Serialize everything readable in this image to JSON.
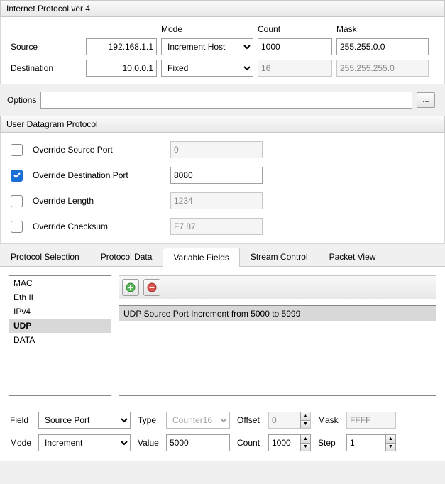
{
  "ipv4": {
    "title": "Internet Protocol ver 4",
    "headers": {
      "mode": "Mode",
      "count": "Count",
      "mask": "Mask"
    },
    "source": {
      "label": "Source",
      "ip": "192.168.1.1",
      "mode": "Increment Host",
      "count": "1000",
      "mask": "255.255.0.0"
    },
    "destination": {
      "label": "Destination",
      "ip": "10.0.0.1",
      "mode": "Fixed",
      "count": "16",
      "mask": "255.255.255.0"
    },
    "options_label": "Options",
    "options_value": ""
  },
  "udp": {
    "title": "User Datagram Protocol",
    "rows": [
      {
        "label": "Override Source Port",
        "checked": false,
        "value": "0"
      },
      {
        "label": "Override Destination Port",
        "checked": true,
        "value": "8080"
      },
      {
        "label": "Override Length",
        "checked": false,
        "value": "1234"
      },
      {
        "label": "Override Checksum",
        "checked": false,
        "value": "F7 87"
      }
    ]
  },
  "tabs": {
    "items": [
      "Protocol Selection",
      "Protocol Data",
      "Variable Fields",
      "Stream Control",
      "Packet View"
    ],
    "active": 2
  },
  "varfields": {
    "protocols": [
      "MAC",
      "Eth II",
      "IPv4",
      "UDP",
      "DATA"
    ],
    "selected": 3,
    "rule": "UDP Source Port Increment from 5000 to 5999"
  },
  "bottom": {
    "field_label": "Field",
    "field_value": "Source Port",
    "type_label": "Type",
    "type_value": "Counter16",
    "offset_label": "Offset",
    "offset_value": "0",
    "mask_label": "Mask",
    "mask_value": "FFFF",
    "mode_label": "Mode",
    "mode_value": "Increment",
    "value_label": "Value",
    "value_value": "5000",
    "count_label": "Count",
    "count_value": "1000",
    "step_label": "Step",
    "step_value": "1"
  }
}
